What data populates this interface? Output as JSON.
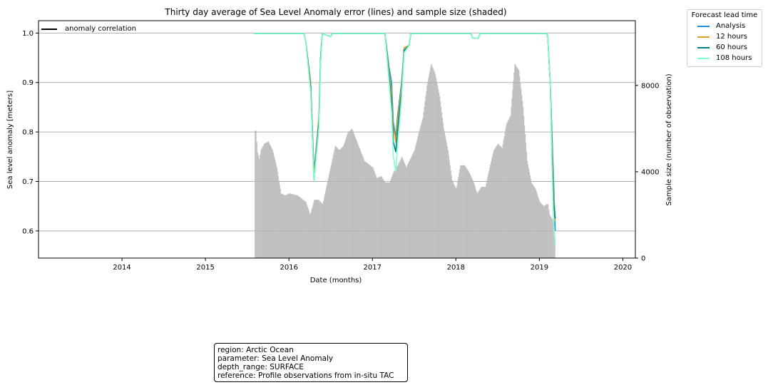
{
  "chart_data": {
    "type": "line",
    "title": "Thirty day average of Sea Level Anomaly error (lines) and sample size (shaded)",
    "xlabel": "Date (months)",
    "ylabel": "Sea level anomaly [meters]",
    "ylabel_right": "Sample size (number of observation)",
    "x_ticks": [
      "2014",
      "2015",
      "2016",
      "2017",
      "2018",
      "2019",
      "2020"
    ],
    "xlim": [
      2013.0,
      2020.15
    ],
    "ylim": [
      0.545,
      1.025
    ],
    "y_ticks": [
      "0.6",
      "0.7",
      "0.8",
      "0.9",
      "1.0"
    ],
    "y2lim": [
      0,
      11000
    ],
    "y2_ticks": [
      "0",
      "4000",
      "8000"
    ],
    "grid": true,
    "legend": {
      "title": "Forecast lead time",
      "placement": "outside-top-right",
      "entries": [
        "Analysis",
        "12 hours",
        "60 hours",
        "108 hours"
      ]
    },
    "inner_legend": {
      "label": "anomaly correlation",
      "placement": "top-left",
      "color": "#000000"
    },
    "series": [
      {
        "name": "Analysis",
        "color": "#1f8fe0",
        "x": [
          2015.58,
          2016.18,
          2016.2,
          2016.26,
          2016.3,
          2016.36,
          2016.38,
          2016.4,
          2016.46,
          2016.5,
          2016.52,
          2017.15,
          2017.2,
          2017.23,
          2017.25,
          2017.28,
          2017.3,
          2017.35,
          2017.38,
          2017.44,
          2017.46,
          2018.18,
          2018.2,
          2018.27,
          2018.29,
          2019.08,
          2019.1,
          2019.13,
          2019.15,
          2019.17,
          2019.19
        ],
        "values": [
          0.999,
          0.999,
          0.985,
          0.9,
          0.72,
          0.83,
          0.95,
          0.999,
          0.995,
          0.993,
          0.999,
          0.999,
          0.93,
          0.9,
          0.82,
          0.79,
          0.83,
          0.9,
          0.97,
          0.975,
          0.999,
          0.999,
          0.99,
          0.99,
          0.999,
          0.999,
          0.995,
          0.9,
          0.8,
          0.7,
          0.6
        ]
      },
      {
        "name": "12 hours",
        "color": "#e0a020",
        "x": [
          2015.58,
          2016.18,
          2016.2,
          2016.26,
          2016.3,
          2016.36,
          2016.38,
          2016.4,
          2016.46,
          2016.5,
          2016.52,
          2017.15,
          2017.2,
          2017.23,
          2017.25,
          2017.28,
          2017.3,
          2017.35,
          2017.38,
          2017.44,
          2017.46,
          2018.18,
          2018.2,
          2018.27,
          2018.29,
          2019.08,
          2019.1,
          2019.13,
          2019.15,
          2019.17,
          2019.19
        ],
        "values": [
          0.999,
          0.999,
          0.985,
          0.9,
          0.71,
          0.83,
          0.95,
          0.999,
          0.995,
          0.993,
          0.999,
          0.999,
          0.92,
          0.88,
          0.81,
          0.78,
          0.82,
          0.89,
          0.97,
          0.975,
          0.999,
          0.999,
          0.99,
          0.99,
          0.999,
          0.999,
          0.995,
          0.9,
          0.78,
          0.68,
          0.62
        ]
      },
      {
        "name": "60 hours",
        "color": "#008080",
        "x": [
          2015.58,
          2016.18,
          2016.2,
          2016.26,
          2016.3,
          2016.36,
          2016.38,
          2016.4,
          2016.46,
          2016.5,
          2016.52,
          2017.15,
          2017.2,
          2017.23,
          2017.25,
          2017.28,
          2017.3,
          2017.35,
          2017.38,
          2017.44,
          2017.46,
          2018.18,
          2018.2,
          2018.27,
          2018.29,
          2019.08,
          2019.1,
          2019.13,
          2019.15,
          2019.17,
          2019.19
        ],
        "values": [
          0.999,
          0.999,
          0.985,
          0.89,
          0.7,
          0.82,
          0.95,
          0.999,
          0.995,
          0.993,
          0.999,
          0.999,
          0.91,
          0.86,
          0.78,
          0.76,
          0.8,
          0.88,
          0.965,
          0.975,
          0.999,
          0.999,
          0.99,
          0.99,
          0.999,
          0.999,
          0.995,
          0.9,
          0.76,
          0.66,
          0.625
        ]
      },
      {
        "name": "108 hours",
        "color": "#7fffd4",
        "x": [
          2015.58,
          2016.18,
          2016.2,
          2016.26,
          2016.3,
          2016.36,
          2016.38,
          2016.4,
          2016.46,
          2016.5,
          2016.52,
          2017.15,
          2017.2,
          2017.23,
          2017.25,
          2017.28,
          2017.3,
          2017.35,
          2017.38,
          2017.44,
          2017.46,
          2018.18,
          2018.2,
          2018.27,
          2018.29,
          2019.08,
          2019.1,
          2019.13,
          2019.15,
          2019.17,
          2019.19
        ],
        "values": [
          0.999,
          0.999,
          0.985,
          0.88,
          0.7,
          0.81,
          0.94,
          0.999,
          0.995,
          0.993,
          0.999,
          0.999,
          0.9,
          0.84,
          0.75,
          0.72,
          0.77,
          0.87,
          0.96,
          0.975,
          0.999,
          0.999,
          0.99,
          0.99,
          0.999,
          0.999,
          0.995,
          0.9,
          0.74,
          0.62,
          0.57
        ]
      }
    ],
    "sample_size": {
      "color": "#c0c0c0",
      "x": [
        2015.58,
        2015.59,
        2015.6,
        2015.62,
        2015.64,
        2015.66,
        2015.7,
        2015.75,
        2015.8,
        2015.85,
        2015.9,
        2015.95,
        2016.0,
        2016.1,
        2016.2,
        2016.25,
        2016.3,
        2016.35,
        2016.4,
        2016.5,
        2016.55,
        2016.6,
        2016.65,
        2016.7,
        2016.75,
        2016.8,
        2016.85,
        2016.9,
        2017.0,
        2017.05,
        2017.1,
        2017.15,
        2017.2,
        2017.25,
        2017.3,
        2017.35,
        2017.4,
        2017.5,
        2017.55,
        2017.6,
        2017.65,
        2017.7,
        2017.75,
        2017.8,
        2017.85,
        2017.9,
        2017.95,
        2018.0,
        2018.05,
        2018.1,
        2018.15,
        2018.2,
        2018.25,
        2018.3,
        2018.35,
        2018.4,
        2018.45,
        2018.5,
        2018.55,
        2018.6,
        2018.65,
        2018.7,
        2018.75,
        2018.8,
        2018.85,
        2018.9,
        2018.95,
        2019.0,
        2019.05,
        2019.08,
        2019.1,
        2019.12,
        2019.15,
        2019.17,
        2019.19
      ],
      "values": [
        0,
        5900,
        5900,
        4900,
        4600,
        5000,
        5300,
        5400,
        5000,
        4200,
        3000,
        2900,
        3000,
        2900,
        2600,
        2000,
        2700,
        2700,
        2500,
        4300,
        5200,
        5000,
        5200,
        5800,
        6000,
        5500,
        5000,
        4500,
        4200,
        3700,
        3800,
        3500,
        3500,
        4000,
        4300,
        4700,
        4200,
        5000,
        5800,
        6500,
        8000,
        9000,
        8500,
        7500,
        6000,
        5000,
        3600,
        3200,
        4300,
        4300,
        4000,
        3600,
        3000,
        3300,
        3300,
        4200,
        5000,
        5300,
        5100,
        6200,
        6600,
        9000,
        8700,
        7000,
        4500,
        3500,
        3200,
        2600,
        2400,
        2500,
        2500,
        2000,
        1800,
        1600,
        500
      ]
    }
  },
  "info_box": {
    "lines": [
      "region: Arctic Ocean",
      "parameter: Sea Level Anomaly",
      "depth_range: SURFACE",
      "reference: Profile observations from in-situ TAC"
    ]
  }
}
